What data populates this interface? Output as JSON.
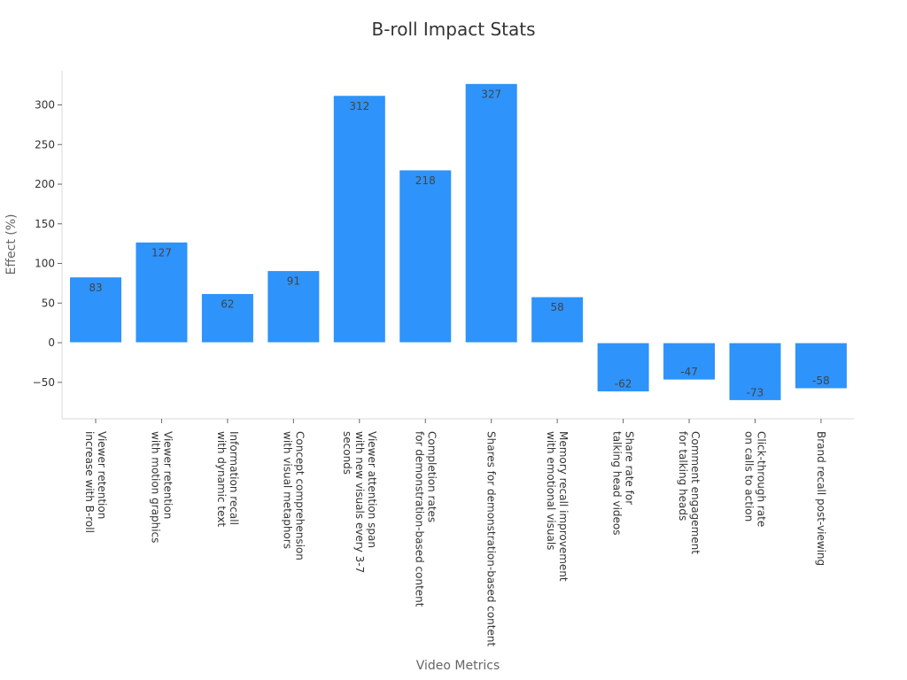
{
  "chart_data": {
    "type": "bar",
    "title": "B-roll Impact Stats",
    "xlabel": "Video Metrics",
    "ylabel": "Effect (%)",
    "categories": [
      [
        "Viewer retention",
        "increase with B-roll"
      ],
      [
        "Viewer retention",
        "with motion graphics"
      ],
      [
        "Information recall",
        "with dynamic text"
      ],
      [
        "Concept comprehension",
        "with visual metaphors"
      ],
      [
        "Viewer attention span",
        "with new visuals every 3-7",
        "seconds"
      ],
      [
        "Completion rates",
        "for demonstration-based content"
      ],
      [
        "Shares for demonstration-based content"
      ],
      [
        "Memory recall improvement",
        "with emotional visuals"
      ],
      [
        "Share rate for",
        "talking head videos"
      ],
      [
        "Comment engagement",
        "for talking heads"
      ],
      [
        "Click-through rate",
        "on calls to action"
      ],
      [
        "Brand recall post-viewing"
      ]
    ],
    "values": [
      83,
      127,
      62,
      91,
      312,
      218,
      327,
      58,
      -62,
      -47,
      -73,
      -58
    ],
    "ylim": [
      -96,
      343
    ],
    "yticks": [
      -50,
      0,
      50,
      100,
      150,
      200,
      250,
      300
    ],
    "ytick_labels": [
      "−50",
      "0",
      "50",
      "100",
      "150",
      "200",
      "250",
      "300"
    ],
    "bar_color": "#2e93fa",
    "grid": false,
    "legend": "none"
  }
}
